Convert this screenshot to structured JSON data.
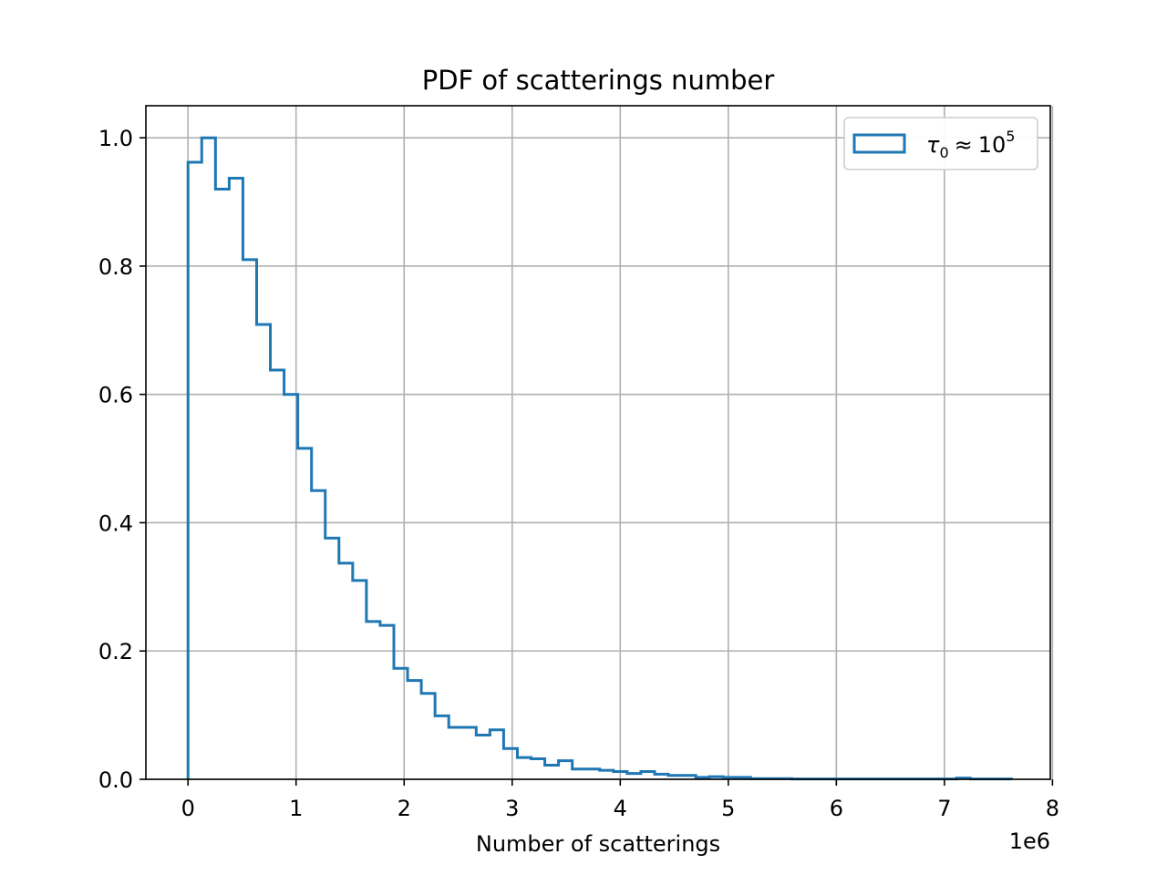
{
  "chart_data": {
    "type": "histogram",
    "title": "PDF of scatterings number",
    "xlabel": "Number of scatterings",
    "ylabel": "",
    "x_offset_text": "1e6",
    "xlim": [
      -0.39,
      7.98
    ],
    "ylim": [
      0,
      1.05
    ],
    "xticks": [
      0,
      1,
      2,
      3,
      4,
      5,
      6,
      7,
      8
    ],
    "xtick_labels": [
      "0",
      "1",
      "2",
      "3",
      "4",
      "5",
      "6",
      "7",
      "8"
    ],
    "yticks": [
      0.0,
      0.2,
      0.4,
      0.6,
      0.8,
      1.0
    ],
    "ytick_labels": [
      "0.0",
      "0.2",
      "0.4",
      "0.6",
      "0.8",
      "1.0"
    ],
    "grid": true,
    "legend": {
      "placement": "upper right",
      "entries": [
        {
          "symbol": "τ",
          "subscript": "0",
          "relation": "≈",
          "base": "10",
          "superscript": "5"
        }
      ]
    },
    "series": [
      {
        "color": "#1f77b4",
        "histtype": "step",
        "bin_edges": [
          0,
          0.127,
          0.254,
          0.381,
          0.508,
          0.635,
          0.762,
          0.889,
          1.016,
          1.143,
          1.27,
          1.397,
          1.524,
          1.651,
          1.778,
          1.905,
          2.032,
          2.159,
          2.286,
          2.413,
          2.54,
          2.667,
          2.794,
          2.921,
          3.048,
          3.175,
          3.302,
          3.429,
          3.556,
          3.683,
          3.81,
          3.937,
          4.064,
          4.191,
          4.318,
          4.445,
          4.572,
          4.699,
          4.826,
          4.953,
          5.08,
          5.207,
          5.334,
          5.461,
          5.588,
          5.715,
          5.842,
          5.969,
          6.096,
          6.223,
          6.35,
          6.477,
          6.604,
          6.731,
          6.858,
          6.985,
          7.112,
          7.239,
          7.366,
          7.493,
          7.62
        ],
        "values": [
          0.962,
          1.0,
          0.92,
          0.937,
          0.81,
          0.709,
          0.638,
          0.6,
          0.516,
          0.45,
          0.376,
          0.337,
          0.31,
          0.246,
          0.24,
          0.173,
          0.154,
          0.134,
          0.099,
          0.081,
          0.081,
          0.069,
          0.077,
          0.048,
          0.034,
          0.032,
          0.022,
          0.029,
          0.016,
          0.016,
          0.014,
          0.012,
          0.009,
          0.012,
          0.008,
          0.006,
          0.006,
          0.003,
          0.004,
          0.003,
          0.003,
          0.001,
          0.001,
          0.001,
          0.0005,
          0.0005,
          0.0005,
          0.0005,
          0.0005,
          0.0005,
          0.0005,
          0.0005,
          0.0005,
          0.0005,
          0.0005,
          0.0005,
          0.002,
          0.0005,
          0.0005,
          0.0005
        ]
      }
    ]
  }
}
